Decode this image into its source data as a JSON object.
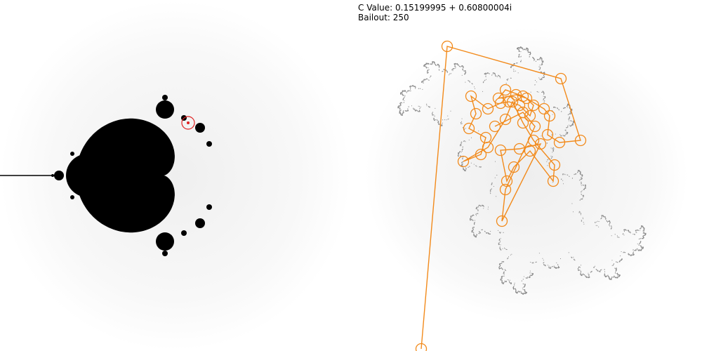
{
  "info": {
    "c_value_label": "C Value:",
    "c_value": "0.15199995 + 0.60800004i",
    "bailout_label": "Bailout:",
    "bailout": "250"
  },
  "colors": {
    "mandelbrot_fill": "#000000",
    "fractal_halo": "#cccccc",
    "julia_dust": "#888888",
    "orbit_path": "#f28a1b",
    "c_marker": "#e02020"
  },
  "icons": {
    "c_marker": "selected-point-marker-icon",
    "orbit_point": "orbit-point-circle-icon"
  },
  "c_point": {
    "re": 0.15199995,
    "im": 0.60800004
  }
}
